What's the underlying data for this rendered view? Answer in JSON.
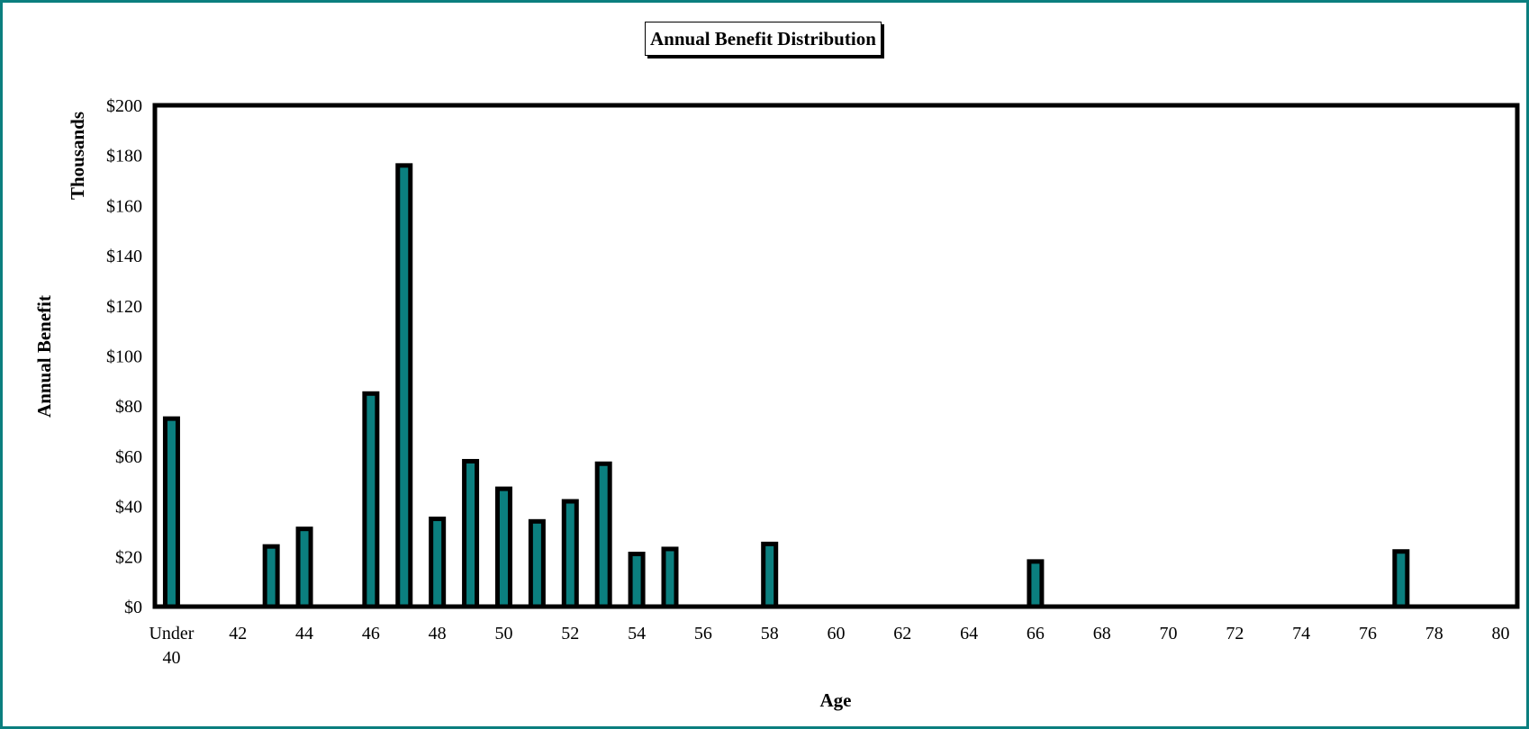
{
  "chart_data": {
    "type": "bar",
    "title": "Annual Benefit Distribution",
    "xlabel": "Age",
    "ylabel": "Annual Benefit",
    "yunit_label": "Thousands",
    "ylim": [
      0,
      200
    ],
    "y_ticks": [
      "$0",
      "$20",
      "$40",
      "$60",
      "$80",
      "$100",
      "$120",
      "$140",
      "$160",
      "$180",
      "$200"
    ],
    "x_ticks": [
      {
        "category": "Under 40",
        "lines": [
          "Under",
          "40"
        ]
      },
      {
        "category": "42",
        "lines": [
          "42"
        ]
      },
      {
        "category": "44",
        "lines": [
          "44"
        ]
      },
      {
        "category": "46",
        "lines": [
          "46"
        ]
      },
      {
        "category": "48",
        "lines": [
          "48"
        ]
      },
      {
        "category": "50",
        "lines": [
          "50"
        ]
      },
      {
        "category": "52",
        "lines": [
          "52"
        ]
      },
      {
        "category": "54",
        "lines": [
          "54"
        ]
      },
      {
        "category": "56",
        "lines": [
          "56"
        ]
      },
      {
        "category": "58",
        "lines": [
          "58"
        ]
      },
      {
        "category": "60",
        "lines": [
          "60"
        ]
      },
      {
        "category": "62",
        "lines": [
          "62"
        ]
      },
      {
        "category": "64",
        "lines": [
          "64"
        ]
      },
      {
        "category": "66",
        "lines": [
          "66"
        ]
      },
      {
        "category": "68",
        "lines": [
          "68"
        ]
      },
      {
        "category": "70",
        "lines": [
          "70"
        ]
      },
      {
        "category": "72",
        "lines": [
          "72"
        ]
      },
      {
        "category": "74",
        "lines": [
          "74"
        ]
      },
      {
        "category": "76",
        "lines": [
          "76"
        ]
      },
      {
        "category": "78",
        "lines": [
          "78"
        ]
      },
      {
        "category": "80",
        "lines": [
          "80"
        ]
      }
    ],
    "categories": [
      "Under 40",
      "41",
      "42",
      "43",
      "44",
      "45",
      "46",
      "47",
      "48",
      "49",
      "50",
      "51",
      "52",
      "53",
      "54",
      "55",
      "56",
      "57",
      "58",
      "59",
      "60",
      "61",
      "62",
      "63",
      "64",
      "65",
      "66",
      "67",
      "68",
      "69",
      "70",
      "71",
      "72",
      "73",
      "74",
      "75",
      "76",
      "77",
      "78",
      "79",
      "80"
    ],
    "values": [
      75,
      0,
      0,
      24,
      31,
      0,
      85,
      176,
      35,
      58,
      47,
      34,
      42,
      57,
      21,
      23,
      0,
      0,
      25,
      0,
      0,
      0,
      0,
      0,
      0,
      0,
      18,
      0,
      0,
      0,
      0,
      0,
      0,
      0,
      0,
      0,
      0,
      22,
      0,
      0,
      0
    ],
    "bar_color": "#0b7f7f",
    "frame_color": "#0b7f7f",
    "grid": false,
    "legend": "none"
  }
}
